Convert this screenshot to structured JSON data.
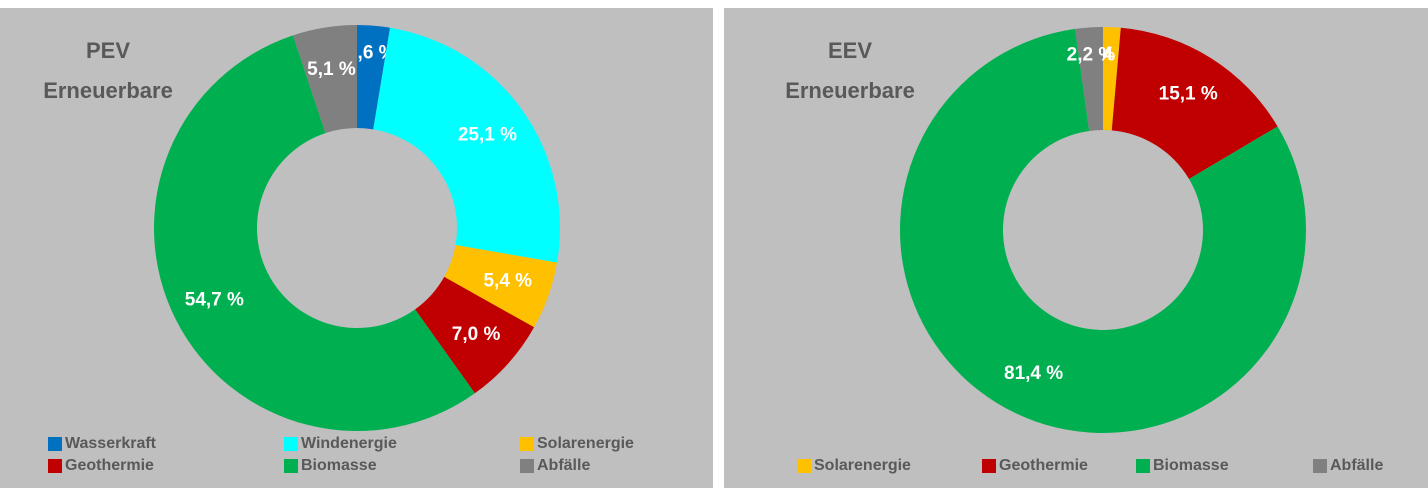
{
  "chart_data": [
    {
      "type": "donut",
      "title_lines": [
        "PEV",
        "Erneuerbare"
      ],
      "categories": [
        "Wasserkraft",
        "Windenergie",
        "Solarenergie",
        "Geothermie",
        "Biomasse",
        "Abfälle"
      ],
      "values": [
        2.6,
        25.1,
        5.4,
        7.0,
        54.7,
        5.1
      ],
      "value_labels": [
        "2,6 %",
        "25,1 %",
        "5,4 %",
        "7,0 %",
        "54,7 %",
        "5,1 %"
      ],
      "colors": [
        "#0070c0",
        "#00ffff",
        "#ffc000",
        "#c00000",
        "#00b050",
        "#808080"
      ]
    },
    {
      "type": "donut",
      "title_lines": [
        "EEV",
        "Erneuerbare"
      ],
      "categories": [
        "Solarenergie",
        "Geothermie",
        "Biomasse",
        "Abfälle"
      ],
      "values": [
        1.4,
        15.1,
        81.4,
        2.2
      ],
      "value_labels": [
        "1,4 %",
        "15,1 %",
        "81,4 %",
        "2,2 %"
      ],
      "colors": [
        "#ffc000",
        "#c00000",
        "#00b050",
        "#808080"
      ]
    }
  ]
}
